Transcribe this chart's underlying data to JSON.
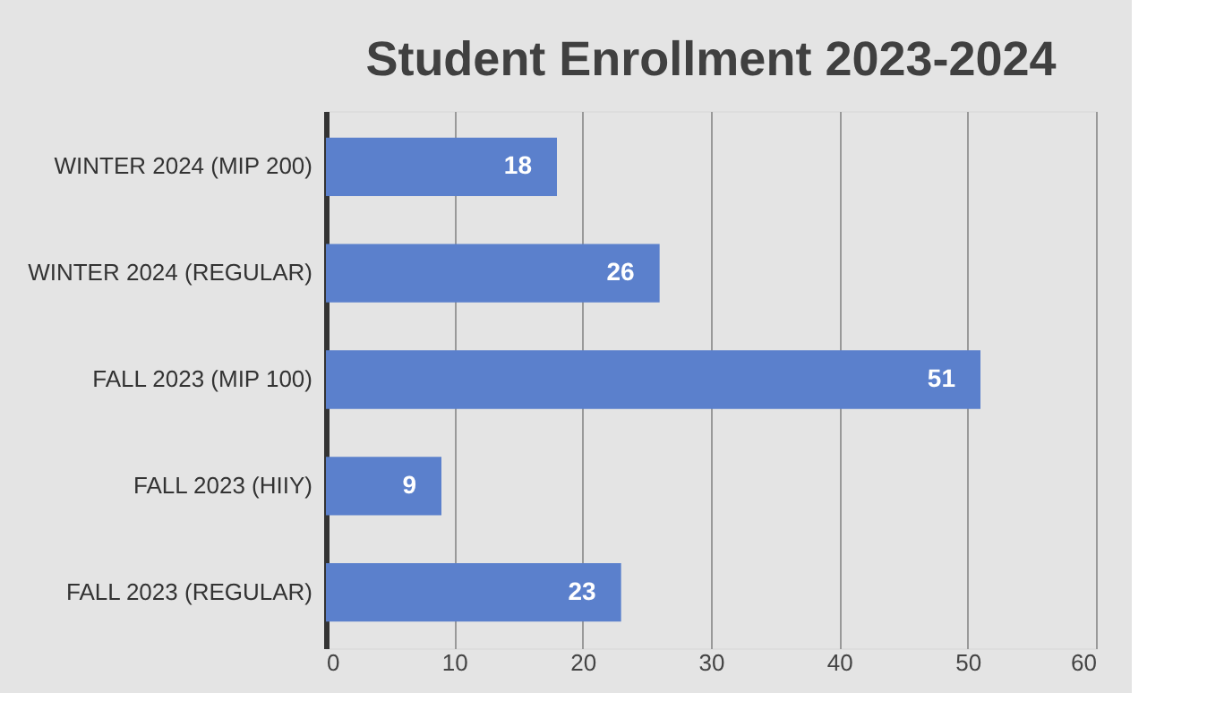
{
  "chart_data": {
    "type": "bar",
    "orientation": "horizontal",
    "title": "Student Enrollment 2023-2024",
    "categories": [
      "WINTER 2024 (MIP 200)",
      "WINTER 2024 (REGULAR)",
      "FALL 2023 (MIP 100)",
      "FALL 2023 (HIIY)",
      "FALL 2023 (REGULAR)"
    ],
    "values": [
      18,
      26,
      51,
      9,
      23
    ],
    "color": "#5b80cc",
    "xlim": [
      0,
      60
    ],
    "xticks": [
      0,
      10,
      20,
      30,
      40,
      50,
      60
    ],
    "grid": "x",
    "data_labels": true
  }
}
